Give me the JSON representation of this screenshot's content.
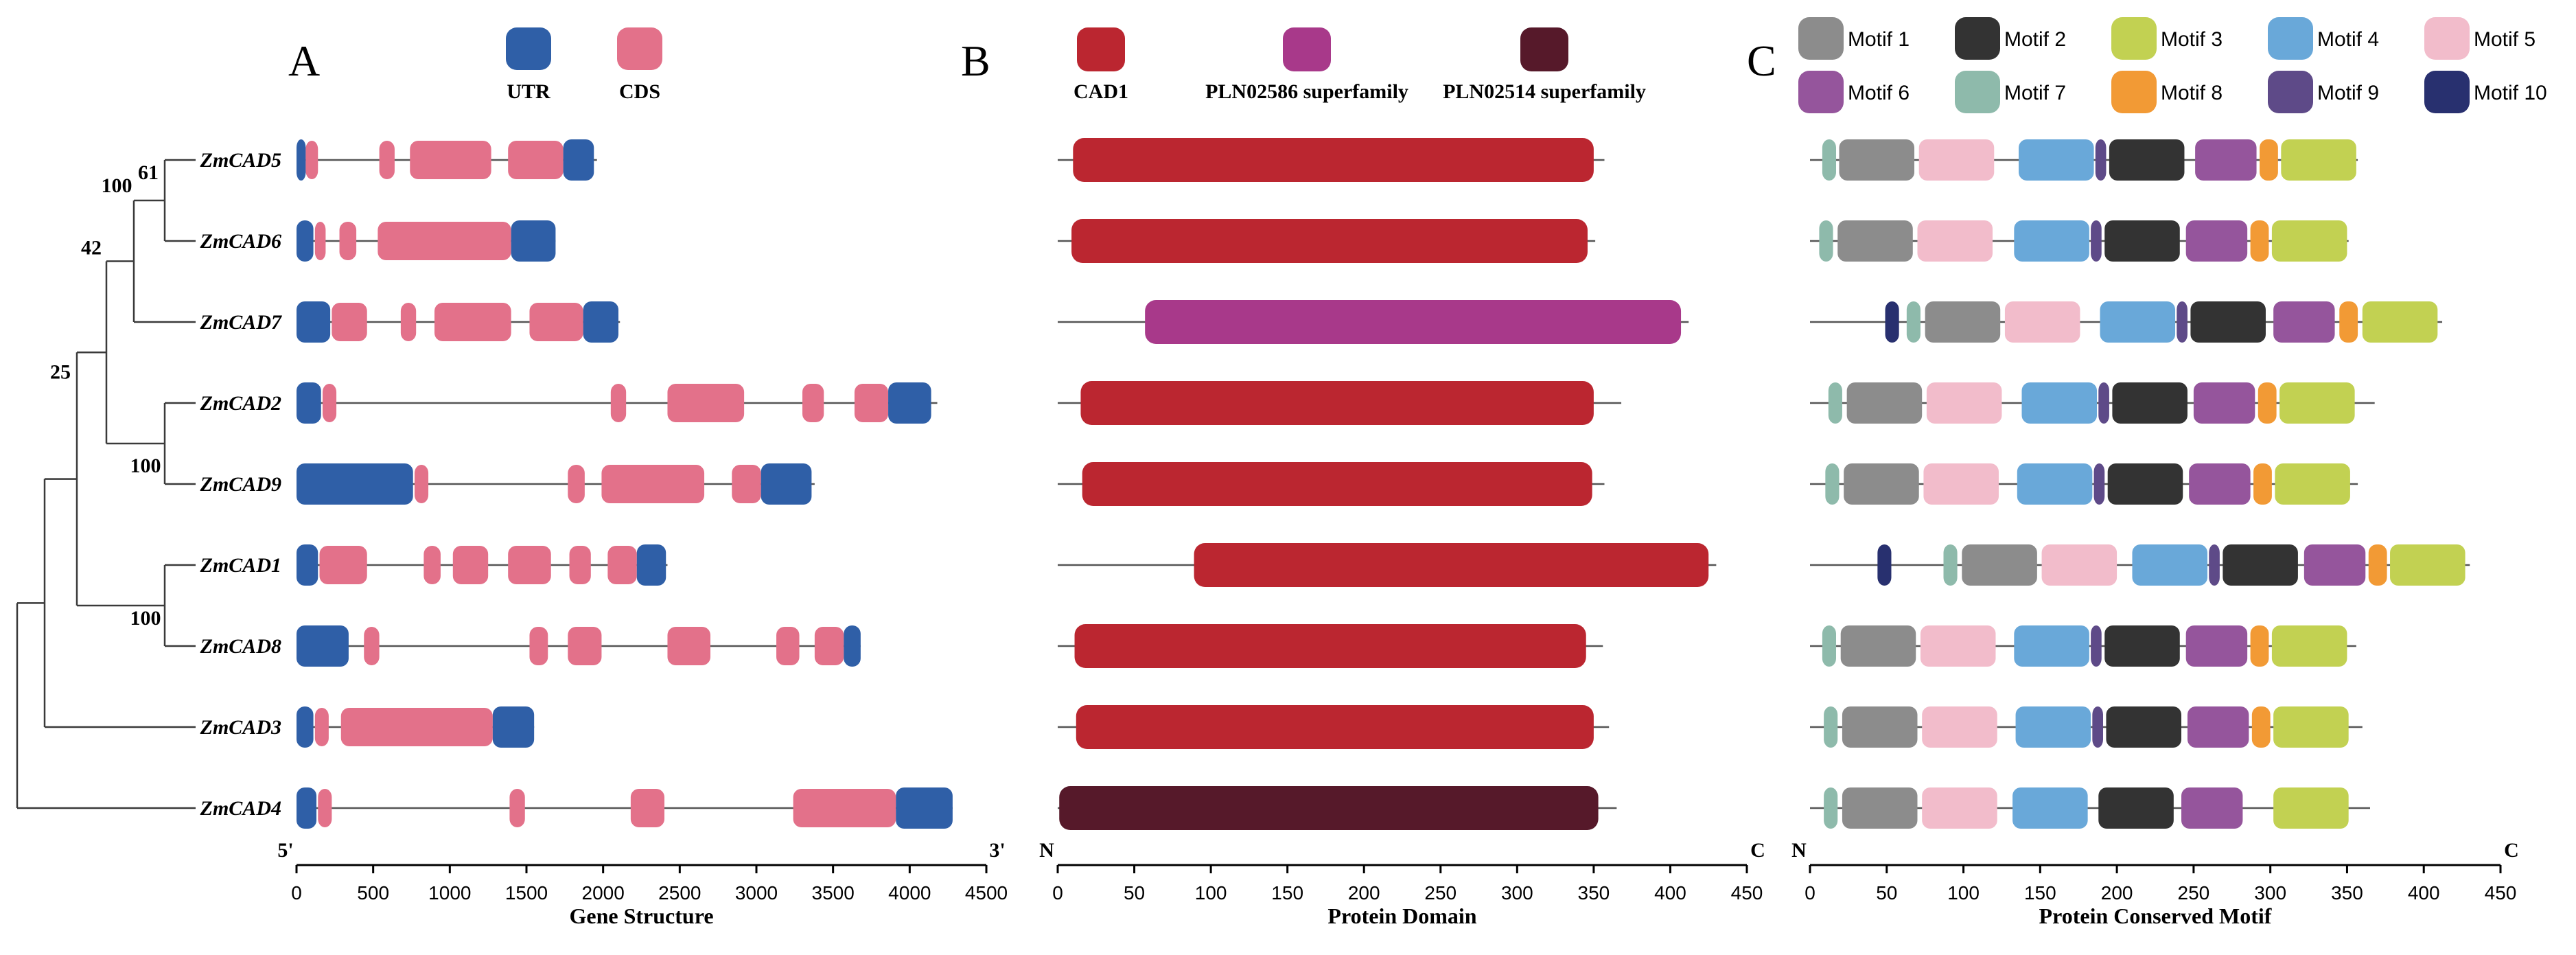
{
  "panels": {
    "A": {
      "letter": "A",
      "title": "Gene Structure",
      "end_left": "5'",
      "end_right": "3'",
      "legend": [
        {
          "label": "UTR",
          "color": "#2f5fa7"
        },
        {
          "label": "CDS",
          "color": "#e3718a"
        }
      ],
      "axis": {
        "min": 0,
        "max": 4500,
        "ticks": [
          "0",
          "500",
          "1000",
          "1500",
          "2000",
          "2500",
          "3000",
          "3500",
          "4000",
          "4500"
        ]
      }
    },
    "B": {
      "letter": "B",
      "title": "Protein Domain",
      "end_left": "N",
      "end_right": "C",
      "legend": [
        {
          "label": "CAD1",
          "color": "#bb2630"
        },
        {
          "label": "PLN02586 superfamily",
          "color": "#a8398a"
        },
        {
          "label": "PLN02514 superfamily",
          "color": "#56192a"
        }
      ],
      "axis": {
        "min": 0,
        "max": 450,
        "ticks": [
          "0",
          "50",
          "100",
          "150",
          "200",
          "250",
          "300",
          "350",
          "400",
          "450"
        ]
      }
    },
    "C": {
      "letter": "C",
      "title": "Protein Conserved Motif",
      "end_left": "N",
      "end_right": "C",
      "legend": [
        {
          "label": "Motif 1",
          "color": "#8c8c8c"
        },
        {
          "label": "Motif 2",
          "color": "#333333"
        },
        {
          "label": "Motif 3",
          "color": "#c2d152"
        },
        {
          "label": "Motif 4",
          "color": "#69a8d9"
        },
        {
          "label": "Motif 5",
          "color": "#f2bccb"
        },
        {
          "label": "Motif 6",
          "color": "#95559c"
        },
        {
          "label": "Motif 7",
          "color": "#8ebaab"
        },
        {
          "label": "Motif 8",
          "color": "#f29a35"
        },
        {
          "label": "Motif 9",
          "color": "#5e4a88"
        },
        {
          "label": "Motif 10",
          "color": "#28306f"
        }
      ],
      "axis": {
        "min": 0,
        "max": 450,
        "ticks": [
          "0",
          "50",
          "100",
          "150",
          "200",
          "250",
          "300",
          "350",
          "400",
          "450"
        ]
      }
    }
  },
  "tree": {
    "bootstrap": [
      "61",
      "100",
      "42",
      "100",
      "25",
      "100"
    ]
  },
  "genes": [
    {
      "name": "ZmCAD5",
      "length_bp": 1960,
      "protein_len": 357,
      "structure": [
        {
          "t": "UTR",
          "s": 0,
          "e": 60
        },
        {
          "t": "CDS",
          "s": 60,
          "e": 140
        },
        {
          "t": "CDS",
          "s": 540,
          "e": 640
        },
        {
          "t": "CDS",
          "s": 740,
          "e": 1270
        },
        {
          "t": "CDS",
          "s": 1380,
          "e": 1740
        },
        {
          "t": "UTR",
          "s": 1740,
          "e": 1940
        }
      ],
      "domains": [
        {
          "d": "CAD1",
          "s": 10,
          "e": 350
        }
      ],
      "motifs": [
        {
          "m": 7,
          "s": 8,
          "e": 17
        },
        {
          "m": 1,
          "s": 19,
          "e": 68
        },
        {
          "m": 5,
          "s": 71,
          "e": 120
        },
        {
          "m": 4,
          "s": 136,
          "e": 185
        },
        {
          "m": 9,
          "s": 186,
          "e": 193
        },
        {
          "m": 2,
          "s": 195,
          "e": 244
        },
        {
          "m": 6,
          "s": 251,
          "e": 291
        },
        {
          "m": 8,
          "s": 293,
          "e": 305
        },
        {
          "m": 3,
          "s": 307,
          "e": 356
        }
      ]
    },
    {
      "name": "ZmCAD6",
      "length_bp": 1690,
      "protein_len": 351,
      "structure": [
        {
          "t": "UTR",
          "s": 0,
          "e": 110
        },
        {
          "t": "CDS",
          "s": 120,
          "e": 190
        },
        {
          "t": "CDS",
          "s": 280,
          "e": 390
        },
        {
          "t": "CDS",
          "s": 530,
          "e": 1400
        },
        {
          "t": "UTR",
          "s": 1400,
          "e": 1690
        }
      ],
      "domains": [
        {
          "d": "CAD1",
          "s": 9,
          "e": 346
        }
      ],
      "motifs": [
        {
          "m": 7,
          "s": 6,
          "e": 15
        },
        {
          "m": 1,
          "s": 18,
          "e": 67
        },
        {
          "m": 5,
          "s": 70,
          "e": 119
        },
        {
          "m": 4,
          "s": 133,
          "e": 182
        },
        {
          "m": 9,
          "s": 183,
          "e": 190
        },
        {
          "m": 2,
          "s": 192,
          "e": 241
        },
        {
          "m": 6,
          "s": 245,
          "e": 285
        },
        {
          "m": 8,
          "s": 287,
          "e": 299
        },
        {
          "m": 3,
          "s": 301,
          "e": 350
        }
      ]
    },
    {
      "name": "ZmCAD7",
      "length_bp": 2110,
      "protein_len": 412,
      "structure": [
        {
          "t": "UTR",
          "s": 0,
          "e": 220
        },
        {
          "t": "CDS",
          "s": 230,
          "e": 460
        },
        {
          "t": "CDS",
          "s": 680,
          "e": 780
        },
        {
          "t": "CDS",
          "s": 900,
          "e": 1400
        },
        {
          "t": "CDS",
          "s": 1520,
          "e": 1870
        },
        {
          "t": "UTR",
          "s": 1870,
          "e": 2100
        }
      ],
      "domains": [
        {
          "d": "PLN02586",
          "s": 57,
          "e": 407
        }
      ],
      "motifs": [
        {
          "m": 10,
          "s": 49,
          "e": 58
        },
        {
          "m": 7,
          "s": 63,
          "e": 72
        },
        {
          "m": 1,
          "s": 75,
          "e": 124
        },
        {
          "m": 5,
          "s": 127,
          "e": 176
        },
        {
          "m": 4,
          "s": 189,
          "e": 238
        },
        {
          "m": 9,
          "s": 239,
          "e": 246
        },
        {
          "m": 2,
          "s": 248,
          "e": 297
        },
        {
          "m": 6,
          "s": 302,
          "e": 342
        },
        {
          "m": 8,
          "s": 345,
          "e": 357
        },
        {
          "m": 3,
          "s": 360,
          "e": 409
        }
      ]
    },
    {
      "name": "ZmCAD2",
      "length_bp": 4180,
      "protein_len": 368,
      "structure": [
        {
          "t": "UTR",
          "s": 0,
          "e": 160
        },
        {
          "t": "CDS",
          "s": 170,
          "e": 260
        },
        {
          "t": "CDS",
          "s": 2050,
          "e": 2150
        },
        {
          "t": "CDS",
          "s": 2420,
          "e": 2920
        },
        {
          "t": "CDS",
          "s": 3300,
          "e": 3440
        },
        {
          "t": "CDS",
          "s": 3640,
          "e": 3860
        },
        {
          "t": "UTR",
          "s": 3860,
          "e": 4140
        }
      ],
      "domains": [
        {
          "d": "CAD1",
          "s": 15,
          "e": 350
        }
      ],
      "motifs": [
        {
          "m": 7,
          "s": 12,
          "e": 21
        },
        {
          "m": 1,
          "s": 24,
          "e": 73
        },
        {
          "m": 5,
          "s": 76,
          "e": 125
        },
        {
          "m": 4,
          "s": 138,
          "e": 187
        },
        {
          "m": 9,
          "s": 188,
          "e": 195
        },
        {
          "m": 2,
          "s": 197,
          "e": 246
        },
        {
          "m": 6,
          "s": 250,
          "e": 290
        },
        {
          "m": 8,
          "s": 292,
          "e": 304
        },
        {
          "m": 3,
          "s": 306,
          "e": 355
        }
      ]
    },
    {
      "name": "ZmCAD9",
      "length_bp": 3380,
      "protein_len": 357,
      "structure": [
        {
          "t": "UTR",
          "s": 0,
          "e": 760
        },
        {
          "t": "CDS",
          "s": 770,
          "e": 860
        },
        {
          "t": "CDS",
          "s": 1770,
          "e": 1880
        },
        {
          "t": "CDS",
          "s": 1990,
          "e": 2660
        },
        {
          "t": "CDS",
          "s": 2840,
          "e": 3030
        },
        {
          "t": "UTR",
          "s": 3030,
          "e": 3360
        }
      ],
      "domains": [
        {
          "d": "CAD1",
          "s": 16,
          "e": 349
        }
      ],
      "motifs": [
        {
          "m": 7,
          "s": 10,
          "e": 19
        },
        {
          "m": 1,
          "s": 22,
          "e": 71
        },
        {
          "m": 5,
          "s": 74,
          "e": 123
        },
        {
          "m": 4,
          "s": 135,
          "e": 184
        },
        {
          "m": 9,
          "s": 185,
          "e": 192
        },
        {
          "m": 2,
          "s": 194,
          "e": 243
        },
        {
          "m": 6,
          "s": 247,
          "e": 287
        },
        {
          "m": 8,
          "s": 289,
          "e": 301
        },
        {
          "m": 3,
          "s": 303,
          "e": 352
        }
      ]
    },
    {
      "name": "ZmCAD1",
      "length_bp": 2420,
      "protein_len": 430,
      "structure": [
        {
          "t": "UTR",
          "s": 0,
          "e": 140
        },
        {
          "t": "CDS",
          "s": 150,
          "e": 460
        },
        {
          "t": "CDS",
          "s": 830,
          "e": 940
        },
        {
          "t": "CDS",
          "s": 1020,
          "e": 1250
        },
        {
          "t": "CDS",
          "s": 1380,
          "e": 1660
        },
        {
          "t": "CDS",
          "s": 1780,
          "e": 1920
        },
        {
          "t": "CDS",
          "s": 2030,
          "e": 2220
        },
        {
          "t": "UTR",
          "s": 2220,
          "e": 2410
        }
      ],
      "domains": [
        {
          "d": "CAD1",
          "s": 89,
          "e": 425
        }
      ],
      "motifs": [
        {
          "m": 10,
          "s": 44,
          "e": 53
        },
        {
          "m": 7,
          "s": 87,
          "e": 96
        },
        {
          "m": 1,
          "s": 99,
          "e": 148
        },
        {
          "m": 5,
          "s": 151,
          "e": 200
        },
        {
          "m": 4,
          "s": 210,
          "e": 259
        },
        {
          "m": 9,
          "s": 260,
          "e": 267
        },
        {
          "m": 2,
          "s": 269,
          "e": 318
        },
        {
          "m": 6,
          "s": 322,
          "e": 362
        },
        {
          "m": 8,
          "s": 364,
          "e": 376
        },
        {
          "m": 3,
          "s": 378,
          "e": 427
        }
      ]
    },
    {
      "name": "ZmCAD8",
      "length_bp": 3680,
      "protein_len": 356,
      "structure": [
        {
          "t": "UTR",
          "s": 0,
          "e": 340
        },
        {
          "t": "CDS",
          "s": 440,
          "e": 540
        },
        {
          "t": "CDS",
          "s": 1520,
          "e": 1640
        },
        {
          "t": "CDS",
          "s": 1770,
          "e": 1990
        },
        {
          "t": "CDS",
          "s": 2420,
          "e": 2700
        },
        {
          "t": "CDS",
          "s": 3130,
          "e": 3280
        },
        {
          "t": "CDS",
          "s": 3380,
          "e": 3570
        },
        {
          "t": "UTR",
          "s": 3570,
          "e": 3680
        }
      ],
      "domains": [
        {
          "d": "CAD1",
          "s": 11,
          "e": 345
        }
      ],
      "motifs": [
        {
          "m": 7,
          "s": 8,
          "e": 17
        },
        {
          "m": 1,
          "s": 20,
          "e": 69
        },
        {
          "m": 5,
          "s": 72,
          "e": 121
        },
        {
          "m": 4,
          "s": 133,
          "e": 182
        },
        {
          "m": 9,
          "s": 183,
          "e": 190
        },
        {
          "m": 2,
          "s": 192,
          "e": 241
        },
        {
          "m": 6,
          "s": 245,
          "e": 285
        },
        {
          "m": 8,
          "s": 287,
          "e": 299
        },
        {
          "m": 3,
          "s": 301,
          "e": 350
        }
      ]
    },
    {
      "name": "ZmCAD3",
      "length_bp": 1550,
      "protein_len": 360,
      "structure": [
        {
          "t": "UTR",
          "s": 0,
          "e": 110
        },
        {
          "t": "CDS",
          "s": 120,
          "e": 210
        },
        {
          "t": "CDS",
          "s": 290,
          "e": 1280
        },
        {
          "t": "UTR",
          "s": 1280,
          "e": 1550
        }
      ],
      "domains": [
        {
          "d": "CAD1",
          "s": 12,
          "e": 350
        }
      ],
      "motifs": [
        {
          "m": 7,
          "s": 9,
          "e": 18
        },
        {
          "m": 1,
          "s": 21,
          "e": 70
        },
        {
          "m": 5,
          "s": 73,
          "e": 122
        },
        {
          "m": 4,
          "s": 134,
          "e": 183
        },
        {
          "m": 9,
          "s": 184,
          "e": 191
        },
        {
          "m": 2,
          "s": 193,
          "e": 242
        },
        {
          "m": 6,
          "s": 246,
          "e": 286
        },
        {
          "m": 8,
          "s": 288,
          "e": 300
        },
        {
          "m": 3,
          "s": 302,
          "e": 351
        }
      ]
    },
    {
      "name": "ZmCAD4",
      "length_bp": 4280,
      "protein_len": 365,
      "structure": [
        {
          "t": "UTR",
          "s": 0,
          "e": 130
        },
        {
          "t": "CDS",
          "s": 140,
          "e": 230
        },
        {
          "t": "CDS",
          "s": 1390,
          "e": 1490
        },
        {
          "t": "CDS",
          "s": 2180,
          "e": 2400
        },
        {
          "t": "CDS",
          "s": 3240,
          "e": 3910
        },
        {
          "t": "UTR",
          "s": 3910,
          "e": 4280
        }
      ],
      "domains": [
        {
          "d": "PLN02514",
          "s": 1,
          "e": 353
        }
      ],
      "motifs": [
        {
          "m": 7,
          "s": 9,
          "e": 18
        },
        {
          "m": 1,
          "s": 21,
          "e": 70
        },
        {
          "m": 5,
          "s": 73,
          "e": 122
        },
        {
          "m": 4,
          "s": 132,
          "e": 181
        },
        {
          "m": 2,
          "s": 188,
          "e": 237
        },
        {
          "m": 6,
          "s": 242,
          "e": 282
        },
        {
          "m": 3,
          "s": 302,
          "e": 351
        }
      ]
    }
  ]
}
